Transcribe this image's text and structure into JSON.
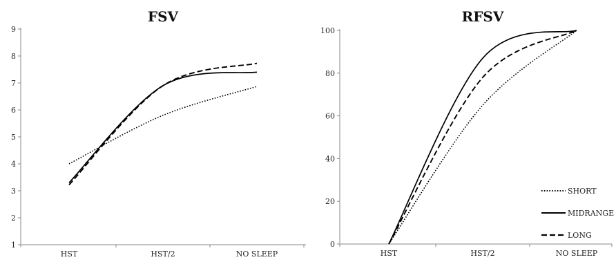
{
  "chart_data": [
    {
      "type": "line",
      "title": "FSV",
      "categories": [
        "HST",
        "HST/2",
        "NO SLEEP"
      ],
      "ylim": [
        1,
        9
      ],
      "yticks": [
        1,
        2,
        3,
        4,
        5,
        6,
        7,
        8,
        9
      ],
      "grid": false,
      "legend": "none",
      "series": [
        {
          "name": "SHORT",
          "style": "dotted",
          "values": [
            4.0,
            5.8,
            6.87
          ]
        },
        {
          "name": "MIDRANGE",
          "style": "solid",
          "values": [
            3.3,
            6.9,
            7.4
          ]
        },
        {
          "name": "LONG",
          "style": "dashed",
          "values": [
            3.22,
            6.9,
            7.73
          ]
        }
      ]
    },
    {
      "type": "line",
      "title": "RFSV",
      "categories": [
        "HST",
        "HST/2",
        "NO SLEEP"
      ],
      "ylim": [
        0,
        100
      ],
      "yticks": [
        0,
        20,
        40,
        60,
        80,
        100
      ],
      "grid": false,
      "legend": "bottom-right",
      "series": [
        {
          "name": "SHORT",
          "style": "dotted",
          "values": [
            0,
            65,
            100
          ]
        },
        {
          "name": "MIDRANGE",
          "style": "solid",
          "values": [
            0,
            87,
            100
          ]
        },
        {
          "name": "LONG",
          "style": "dashed",
          "values": [
            0,
            78,
            100
          ]
        }
      ]
    }
  ]
}
